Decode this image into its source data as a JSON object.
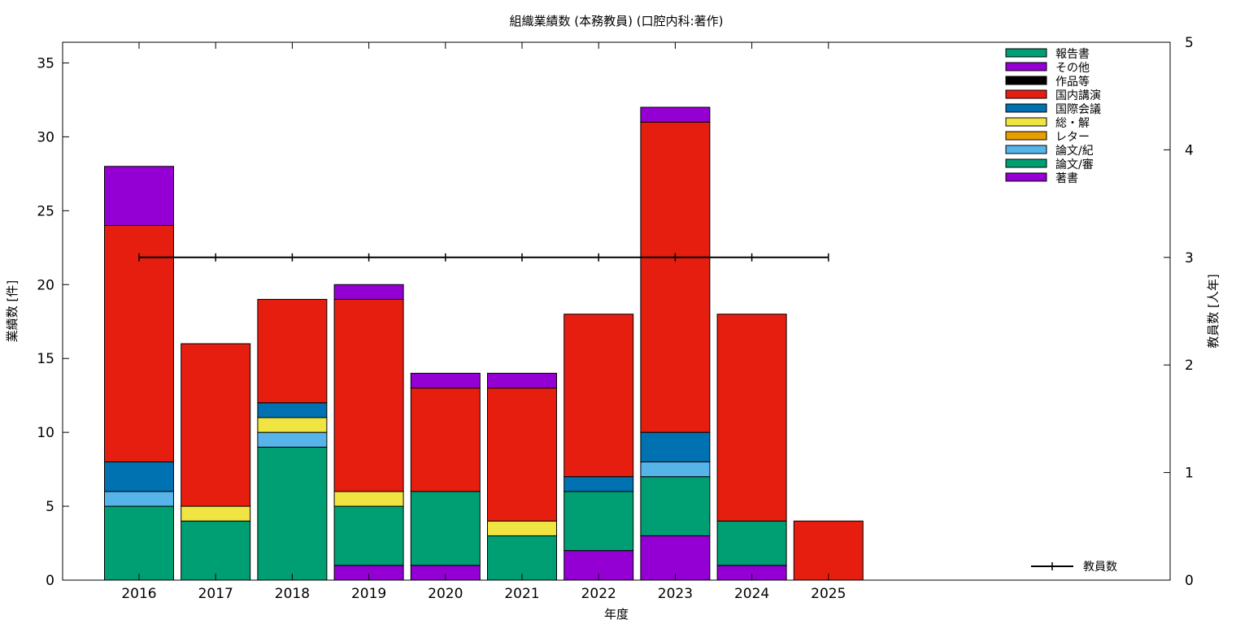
{
  "chart_data": {
    "type": "bar",
    "title": "組織業績数 (本務教員) (口腔内科:著作)",
    "xlabel": "年度",
    "ylabel": "業績数 [件]",
    "y2label": "教員数 [人年]",
    "ylim": [
      0,
      36.4
    ],
    "y2lim": [
      0,
      5
    ],
    "yticks": [
      0,
      5,
      10,
      15,
      20,
      25,
      30,
      35
    ],
    "y2ticks": [
      0,
      1,
      2,
      3,
      4,
      5
    ],
    "grid": false,
    "legend_position": "top-right",
    "categories": [
      "2016",
      "2017",
      "2018",
      "2019",
      "2020",
      "2021",
      "2022",
      "2023",
      "2024",
      "2025"
    ],
    "stacked": true,
    "series": [
      {
        "name": "著書",
        "color": "#9400d3",
        "values": [
          0,
          0,
          0,
          1,
          1,
          0,
          2,
          3,
          1,
          0
        ]
      },
      {
        "name": "論文/審",
        "color": "#009e73",
        "values": [
          5,
          4,
          9,
          4,
          5,
          3,
          4,
          4,
          3,
          0
        ]
      },
      {
        "name": "論文/紀",
        "color": "#56b4e9",
        "values": [
          1,
          0,
          1,
          0,
          0,
          0,
          0,
          1,
          0,
          0
        ]
      },
      {
        "name": "レター",
        "color": "#e69f00",
        "values": [
          0,
          0,
          0,
          0,
          0,
          0,
          0,
          0,
          0,
          0
        ]
      },
      {
        "name": "総・解",
        "color": "#f0e442",
        "values": [
          0,
          1,
          1,
          1,
          0,
          1,
          0,
          0,
          0,
          0
        ]
      },
      {
        "name": "国際会議",
        "color": "#0072b2",
        "values": [
          2,
          0,
          1,
          0,
          0,
          0,
          1,
          2,
          0,
          0
        ]
      },
      {
        "name": "国内講演",
        "color": "#e51e10",
        "values": [
          16,
          11,
          7,
          13,
          7,
          9,
          11,
          21,
          14,
          4
        ]
      },
      {
        "name": "作品等",
        "color": "#000000",
        "values": [
          0,
          0,
          0,
          0,
          0,
          0,
          0,
          0,
          0,
          0
        ]
      },
      {
        "name": "その他",
        "color": "#9400d3",
        "values": [
          4,
          0,
          0,
          1,
          1,
          1,
          0,
          1,
          0,
          0
        ]
      },
      {
        "name": "報告書",
        "color": "#009e73",
        "values": [
          0,
          0,
          0,
          0,
          0,
          0,
          0,
          0,
          0,
          0
        ]
      }
    ],
    "line_series": {
      "name": "教員数",
      "color": "#000000",
      "axis": "y2",
      "values": [
        3,
        3,
        3,
        3,
        3,
        3,
        3,
        3,
        3,
        3
      ]
    },
    "legend_order": [
      "報告書",
      "その他",
      "作品等",
      "国内講演",
      "国際会議",
      "総・解",
      "レター",
      "論文/紀",
      "論文/審",
      "著書"
    ]
  }
}
